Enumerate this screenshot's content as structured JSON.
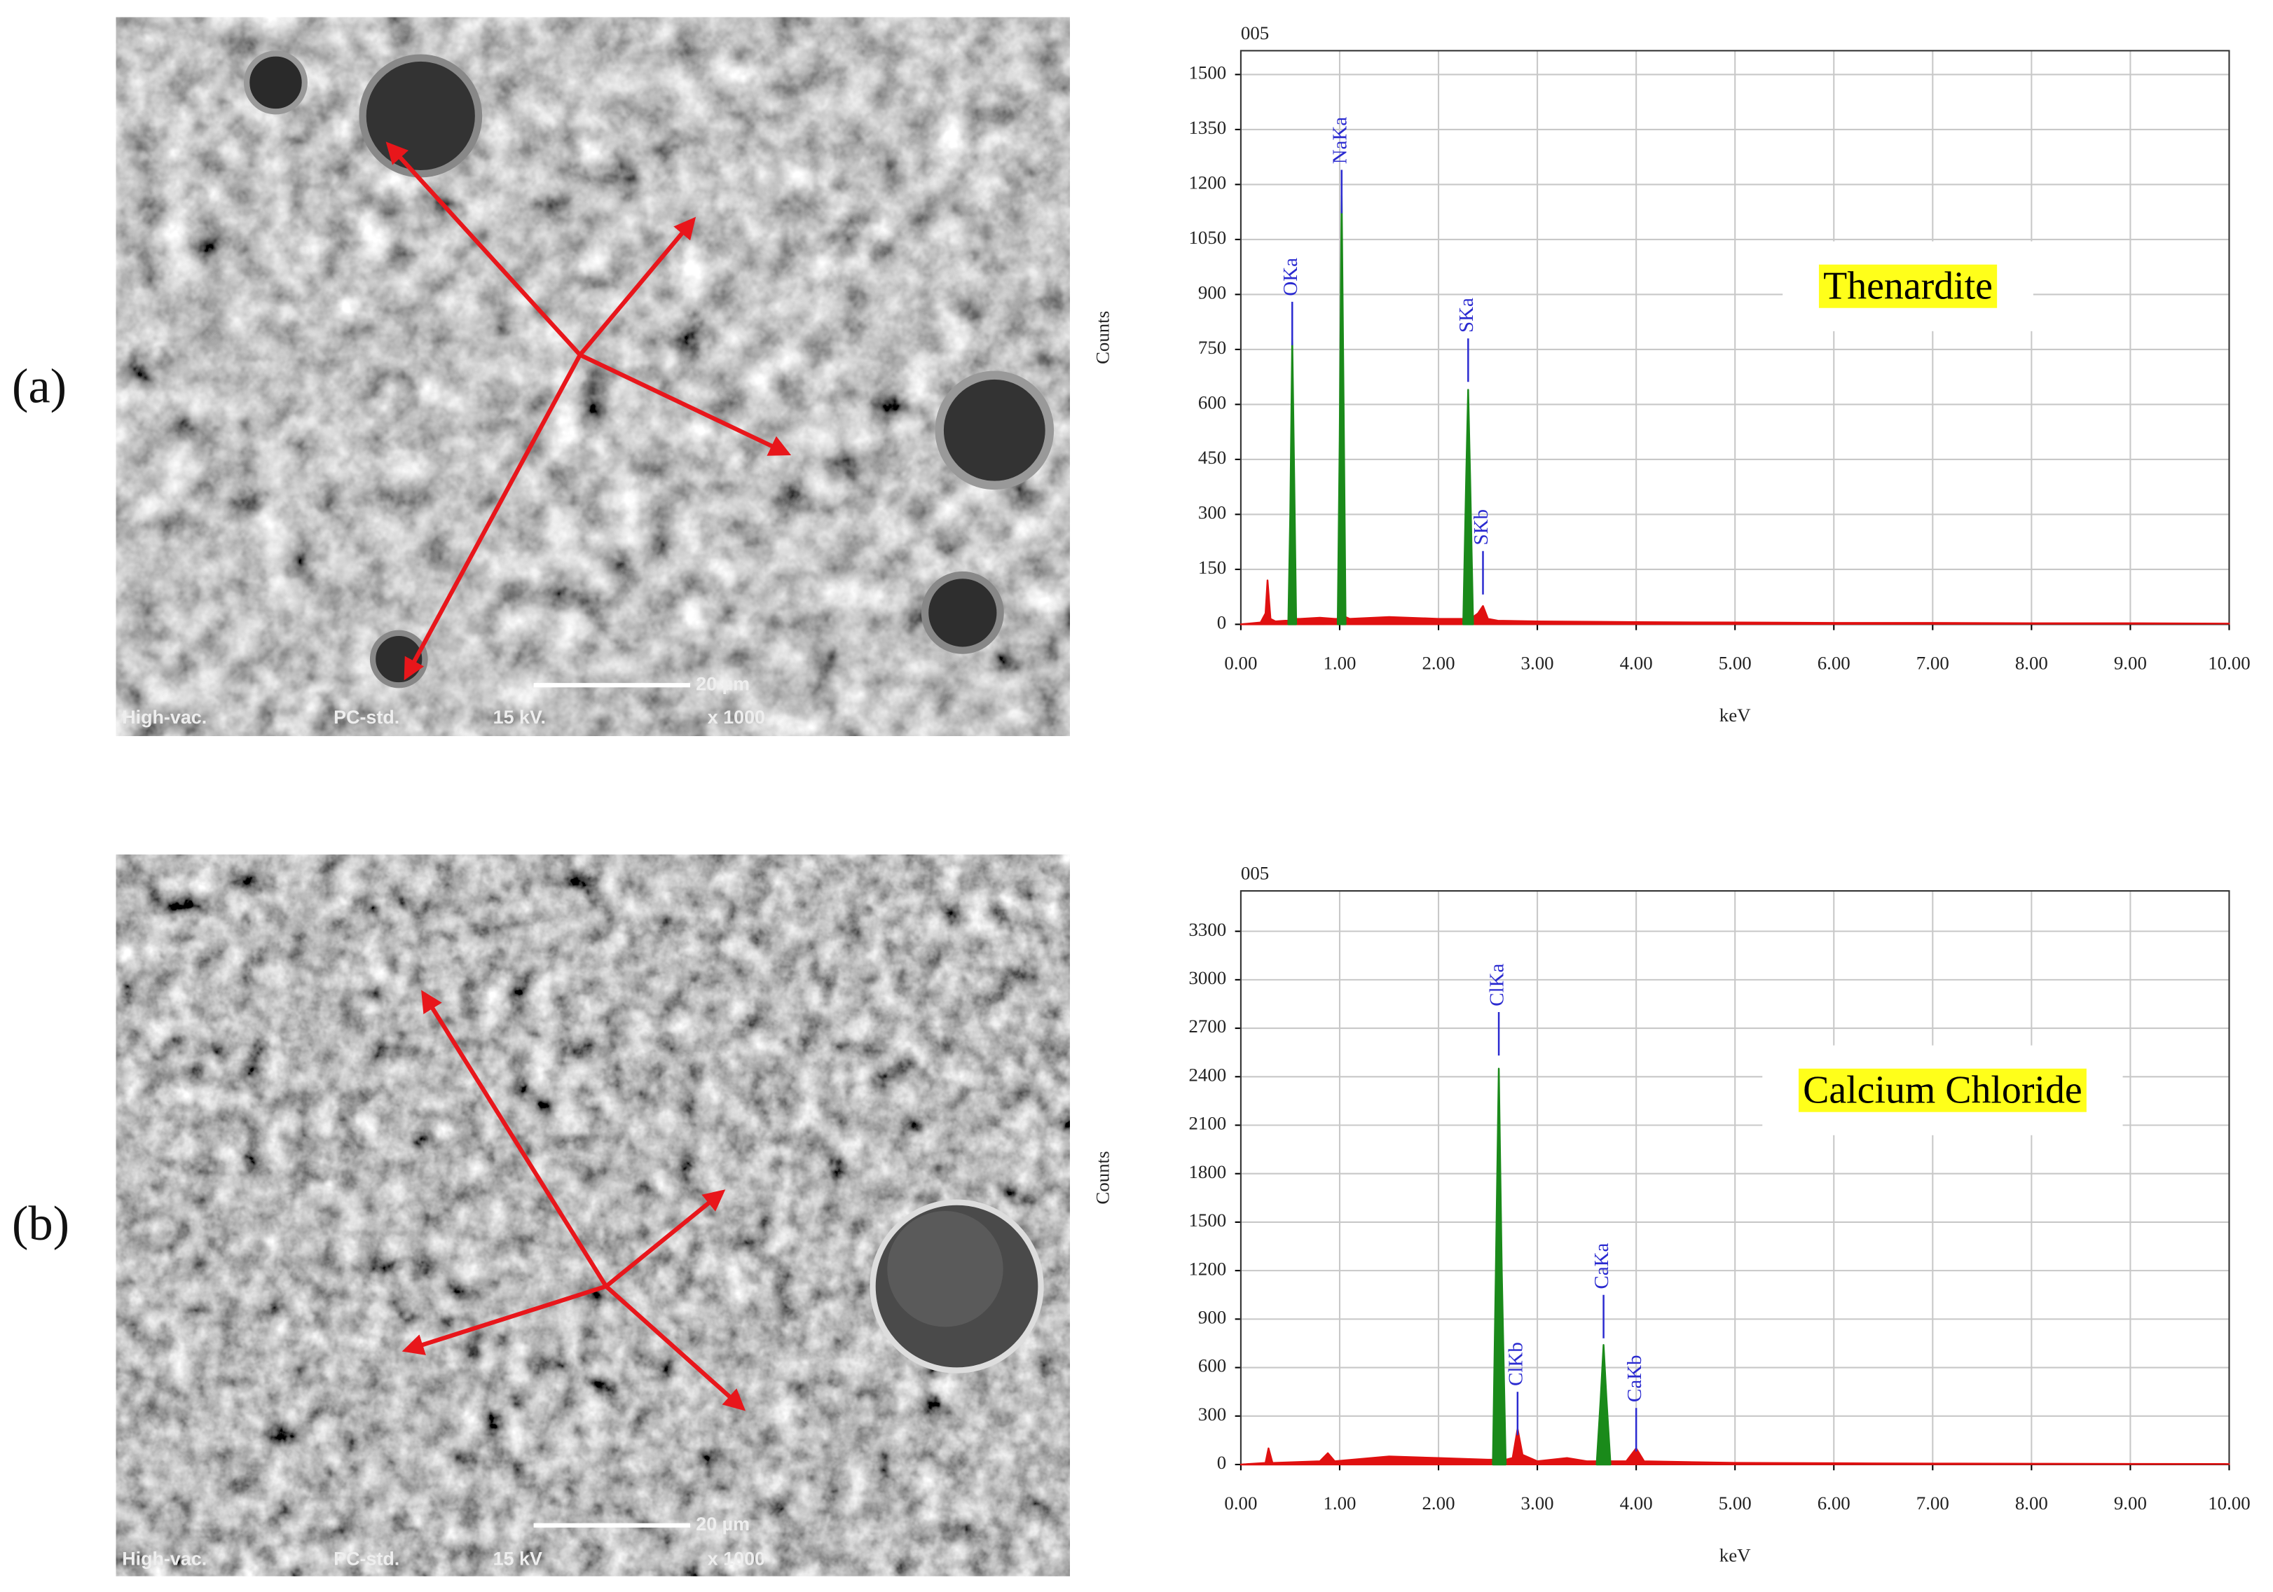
{
  "panels": [
    {
      "label": "(a)",
      "image": {
        "scale_bar": "20 µm",
        "footer": [
          "High-vac.",
          "PC-std.",
          "15 kV.",
          "x 1000"
        ]
      }
    },
    {
      "label": "(b)",
      "image": {
        "scale_bar": "20 µm",
        "footer": [
          "High-vac.",
          "PC-std.",
          "15 kV",
          "x 1000"
        ]
      }
    }
  ],
  "chart_data": [
    {
      "type": "spectrum",
      "title": "005",
      "annotation": "Thenardite",
      "y_label": "Counts",
      "x_label": "keV",
      "x": [
        0.0,
        0.2,
        0.25,
        0.27,
        0.3,
        0.35,
        0.45,
        0.48,
        0.5,
        0.52,
        0.54,
        0.56,
        0.6,
        0.8,
        0.95,
        0.98,
        1.0,
        1.02,
        1.04,
        1.06,
        1.1,
        1.5,
        2.0,
        2.2,
        2.25,
        2.28,
        2.3,
        2.32,
        2.35,
        2.4,
        2.45,
        2.5,
        2.6,
        3.0,
        4.0,
        5.0,
        6.0,
        7.0,
        8.0,
        9.0,
        10.0
      ],
      "series": [
        {
          "color": "#e01010",
          "values": [
            0,
            5,
            30,
            120,
            15,
            8,
            10,
            10,
            15,
            15,
            15,
            15,
            15,
            18,
            15,
            15,
            20,
            20,
            20,
            20,
            15,
            20,
            15,
            15,
            15,
            20,
            20,
            20,
            20,
            30,
            50,
            15,
            10,
            8,
            6,
            5,
            4,
            4,
            3,
            3,
            2
          ]
        },
        {
          "color": "#1a8a1a",
          "values": [
            null,
            null,
            null,
            null,
            null,
            null,
            null,
            0,
            300,
            780,
            400,
            0,
            null,
            null,
            null,
            0,
            500,
            1170,
            600,
            0,
            null,
            null,
            null,
            null,
            0,
            400,
            640,
            400,
            0,
            null,
            null,
            null,
            null,
            null,
            null,
            null,
            null,
            null,
            null,
            null,
            null
          ]
        }
      ],
      "peaks": [
        {
          "label": "OKa",
          "x": 0.52,
          "y": 880
        },
        {
          "label": "NaKa",
          "x": 1.02,
          "y": 1240
        },
        {
          "label": "SKa",
          "x": 2.3,
          "y": 780
        },
        {
          "label": "SKb",
          "x": 2.45,
          "y": 200
        }
      ],
      "peak_color": "#2a2ad0",
      "xlim": [
        0,
        10
      ],
      "ylim": [
        0,
        1565
      ],
      "xticks": [
        {
          "value": 0,
          "label": "0.00"
        },
        {
          "value": 1,
          "label": "1.00"
        },
        {
          "value": 2,
          "label": "2.00"
        },
        {
          "value": 3,
          "label": "3.00"
        },
        {
          "value": 4,
          "label": "4.00"
        },
        {
          "value": 5,
          "label": "5.00"
        },
        {
          "value": 6,
          "label": "6.00"
        },
        {
          "value": 7,
          "label": "7.00"
        },
        {
          "value": 8,
          "label": "8.00"
        },
        {
          "value": 9,
          "label": "9.00"
        },
        {
          "value": 10,
          "label": "10.00"
        }
      ],
      "yticks": [
        0,
        150,
        300,
        450,
        600,
        750,
        900,
        1050,
        1200,
        1350,
        1500
      ],
      "grid": true
    },
    {
      "type": "spectrum",
      "title": "005",
      "annotation": "Calcium Chloride",
      "y_label": "Counts",
      "x_label": "keV",
      "x": [
        0.0,
        0.25,
        0.28,
        0.32,
        0.8,
        0.88,
        0.95,
        1.5,
        2.0,
        2.5,
        2.55,
        2.58,
        2.61,
        2.64,
        2.68,
        2.75,
        2.8,
        2.85,
        3.0,
        3.3,
        3.5,
        3.6,
        3.64,
        3.67,
        3.7,
        3.74,
        3.9,
        4.0,
        4.08,
        5.0,
        6.0,
        7.0,
        8.0,
        9.0,
        10.0
      ],
      "series": [
        {
          "color": "#e01010",
          "values": [
            0,
            10,
            100,
            10,
            20,
            70,
            20,
            50,
            40,
            30,
            30,
            30,
            30,
            30,
            30,
            40,
            220,
            60,
            20,
            40,
            20,
            20,
            30,
            30,
            30,
            20,
            20,
            100,
            20,
            10,
            8,
            6,
            5,
            4,
            3
          ]
        },
        {
          "color": "#1a8a1a",
          "values": [
            null,
            null,
            null,
            null,
            null,
            null,
            null,
            null,
            null,
            null,
            0,
            1200,
            2450,
            1200,
            0,
            null,
            null,
            null,
            null,
            null,
            null,
            0,
            400,
            740,
            400,
            0,
            null,
            null,
            null,
            null,
            null,
            null,
            null,
            null,
            null
          ]
        }
      ],
      "peaks": [
        {
          "label": "ClKa",
          "x": 2.61,
          "y": 2800
        },
        {
          "label": "ClKb",
          "x": 2.8,
          "y": 450
        },
        {
          "label": "CaKa",
          "x": 3.67,
          "y": 1050
        },
        {
          "label": "CaKb",
          "x": 4.0,
          "y": 350
        }
      ],
      "peak_color": "#2a2ad0",
      "xlim": [
        0,
        10
      ],
      "ylim": [
        0,
        3550
      ],
      "xticks": [
        {
          "value": 0,
          "label": "0.00"
        },
        {
          "value": 1,
          "label": "1.00"
        },
        {
          "value": 2,
          "label": "2.00"
        },
        {
          "value": 3,
          "label": "3.00"
        },
        {
          "value": 4,
          "label": "4.00"
        },
        {
          "value": 5,
          "label": "5.00"
        },
        {
          "value": 6,
          "label": "6.00"
        },
        {
          "value": 7,
          "label": "7.00"
        },
        {
          "value": 8,
          "label": "8.00"
        },
        {
          "value": 9,
          "label": "9.00"
        },
        {
          "value": 10,
          "label": "10.00"
        }
      ],
      "yticks": [
        0,
        300,
        600,
        900,
        1200,
        1500,
        1800,
        2100,
        2400,
        2700,
        3000,
        3300
      ],
      "grid": true
    }
  ]
}
